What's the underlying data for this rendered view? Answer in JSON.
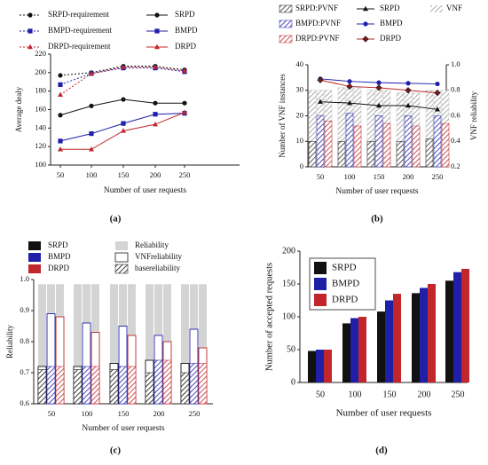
{
  "colors": {
    "srpd": "#111111",
    "bmpd": "#1f1fa8",
    "drpd": "#c0262a",
    "gray": "#d4d4d4",
    "dark": "#6e6e6e"
  },
  "chart_data": [
    {
      "id": "a",
      "panel_label": "(a)",
      "type": "line",
      "xlabel": "Number of user requests",
      "ylabel": "Average dealy",
      "x": [
        50,
        100,
        150,
        200,
        250
      ],
      "ylim": [
        100,
        220
      ],
      "yticks": [
        100,
        120,
        140,
        160,
        180,
        200,
        220
      ],
      "legend": [
        "SRPD-requirement",
        "SRPD",
        "BMPD-requirement",
        "BMPD",
        "DRPD-requirement",
        "DRPD"
      ],
      "series": [
        {
          "name": "SRPD-requirement",
          "values": [
            197,
            200,
            207,
            207,
            203
          ]
        },
        {
          "name": "BMPD-requirement",
          "values": [
            187,
            199,
            205,
            205,
            201
          ]
        },
        {
          "name": "DRPD-requirement",
          "values": [
            176,
            199,
            206,
            206,
            202
          ]
        },
        {
          "name": "SRPD",
          "values": [
            154,
            164,
            171,
            167,
            167
          ]
        },
        {
          "name": "BMPD",
          "values": [
            126,
            134,
            145,
            155,
            156
          ]
        },
        {
          "name": "DRPD",
          "values": [
            117,
            117,
            137,
            144,
            157
          ]
        }
      ]
    },
    {
      "id": "b",
      "panel_label": "(b)",
      "type": "bar+line",
      "xlabel": "Number of user requests",
      "ylabel": "Number of VNF instances",
      "y2label": "VNF reliability",
      "categories": [
        "50",
        "100",
        "150",
        "200",
        "250"
      ],
      "ylim": [
        0,
        40
      ],
      "yticks": [
        0,
        10,
        20,
        30,
        40
      ],
      "y2lim": [
        0.2,
        1.0
      ],
      "y2ticks": [
        0.2,
        0.4,
        0.6,
        0.8,
        1.0
      ],
      "legend": [
        "SRPD:PVNF",
        "SRPD",
        "VNF",
        "BMPD:PVNF",
        "BMPD",
        "DRPD:PVNF",
        "DRPD"
      ],
      "bars": [
        {
          "name": "SRPD:PVNF",
          "values": [
            10,
            10,
            10,
            10,
            11
          ]
        },
        {
          "name": "BMPD:PVNF",
          "values": [
            20,
            21,
            20,
            20,
            20
          ]
        },
        {
          "name": "DRPD:PVNF",
          "values": [
            18,
            16,
            17,
            16,
            17
          ]
        }
      ],
      "vnf_totals": [
        30,
        31,
        30,
        29,
        30
      ],
      "lines": [
        {
          "name": "SRPD",
          "values": [
            0.71,
            0.7,
            0.68,
            0.68,
            0.65
          ]
        },
        {
          "name": "BMPD",
          "values": [
            0.89,
            0.87,
            0.86,
            0.855,
            0.85
          ]
        },
        {
          "name": "DRPD",
          "values": [
            0.88,
            0.83,
            0.82,
            0.8,
            0.78
          ]
        }
      ]
    },
    {
      "id": "c",
      "panel_label": "(c)",
      "type": "bar",
      "xlabel": "Number of user requests",
      "ylabel": "Reliability",
      "categories": [
        "50",
        "100",
        "150",
        "200",
        "250"
      ],
      "ylim": [
        0.6,
        1.0
      ],
      "yticks": [
        0.6,
        0.7,
        0.8,
        0.9,
        1.0
      ],
      "legend": [
        "SRPD",
        "Reliability",
        "BMPD",
        "VNFreliability",
        "DRPD",
        "basereliability"
      ],
      "reliability": [
        0.985,
        0.985,
        0.985,
        0.985,
        0.985
      ],
      "groups": [
        {
          "name": "SRPD",
          "vnf": [
            0.72,
            0.72,
            0.73,
            0.74,
            0.73
          ],
          "base": [
            0.71,
            0.71,
            0.71,
            0.7,
            0.7
          ]
        },
        {
          "name": "BMPD",
          "vnf": [
            0.89,
            0.86,
            0.85,
            0.82,
            0.84
          ],
          "base": [
            0.72,
            0.72,
            0.72,
            0.74,
            0.73
          ]
        },
        {
          "name": "DRPD",
          "vnf": [
            0.88,
            0.83,
            0.82,
            0.8,
            0.78
          ],
          "base": [
            0.72,
            0.72,
            0.72,
            0.74,
            0.73
          ]
        }
      ]
    },
    {
      "id": "d",
      "panel_label": "(d)",
      "type": "bar",
      "xlabel": "Number of user requests",
      "ylabel": "Number of accepted requests",
      "categories": [
        "50",
        "100",
        "150",
        "200",
        "250"
      ],
      "ylim": [
        0,
        200
      ],
      "yticks": [
        0,
        50,
        100,
        150,
        200
      ],
      "legend": [
        "SRPD",
        "BMPD",
        "DRPD"
      ],
      "series": [
        {
          "name": "SRPD",
          "values": [
            48,
            90,
            108,
            136,
            155
          ]
        },
        {
          "name": "BMPD",
          "values": [
            50,
            98,
            125,
            144,
            168
          ]
        },
        {
          "name": "DRPD",
          "values": [
            50,
            100,
            135,
            150,
            173
          ]
        }
      ]
    }
  ]
}
